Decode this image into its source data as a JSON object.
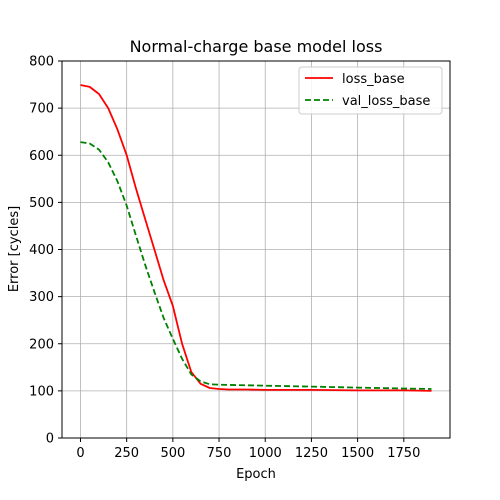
{
  "chart_data": {
    "type": "line",
    "title": "Normal-charge base model loss",
    "xlabel": "Epoch",
    "ylabel": "Error [cycles]",
    "xlim": [
      -100,
      2000
    ],
    "ylim": [
      0,
      800
    ],
    "x_ticks": [
      0,
      250,
      500,
      750,
      1000,
      1250,
      1500,
      1750
    ],
    "y_ticks": [
      0,
      100,
      200,
      300,
      400,
      500,
      600,
      700,
      800
    ],
    "grid": true,
    "legend_position": "upper-right",
    "series": [
      {
        "name": "loss_base",
        "color": "#ff0000",
        "dash": "solid",
        "points": [
          [
            0,
            749
          ],
          [
            50,
            745
          ],
          [
            100,
            730
          ],
          [
            150,
            700
          ],
          [
            200,
            655
          ],
          [
            250,
            600
          ],
          [
            300,
            530
          ],
          [
            350,
            465
          ],
          [
            400,
            400
          ],
          [
            450,
            335
          ],
          [
            500,
            280
          ],
          [
            550,
            200
          ],
          [
            600,
            140
          ],
          [
            650,
            115
          ],
          [
            700,
            106
          ],
          [
            750,
            104
          ],
          [
            800,
            103
          ],
          [
            900,
            103
          ],
          [
            1000,
            102
          ],
          [
            1250,
            102
          ],
          [
            1500,
            101
          ],
          [
            1750,
            101
          ],
          [
            1900,
            100
          ]
        ]
      },
      {
        "name": "val_loss_base",
        "color": "#008000",
        "dash": "dashed",
        "points": [
          [
            0,
            628
          ],
          [
            50,
            625
          ],
          [
            100,
            612
          ],
          [
            150,
            585
          ],
          [
            200,
            545
          ],
          [
            250,
            493
          ],
          [
            300,
            430
          ],
          [
            350,
            368
          ],
          [
            400,
            310
          ],
          [
            450,
            255
          ],
          [
            500,
            210
          ],
          [
            550,
            168
          ],
          [
            600,
            135
          ],
          [
            650,
            120
          ],
          [
            700,
            114
          ],
          [
            750,
            113
          ],
          [
            1000,
            111
          ],
          [
            1250,
            109
          ],
          [
            1500,
            107
          ],
          [
            1750,
            105
          ],
          [
            1900,
            104
          ]
        ]
      }
    ]
  }
}
